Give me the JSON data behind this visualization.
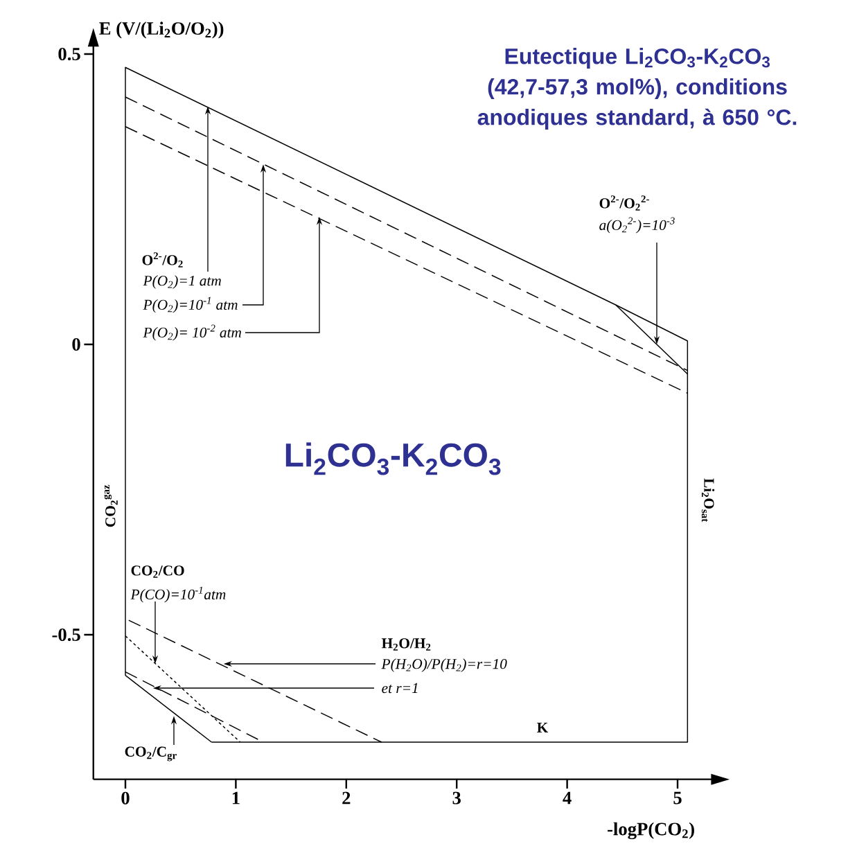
{
  "chart_data": {
    "type": "line",
    "title": "Eutectique Li$_{2}$CO$_{3}$-K$_{2}$CO$_{3}$ (42,7-57,3 mol%), conditions anodiques standard, à 650 °C.",
    "xlabel": "-logP(CO$_{2}$)",
    "ylabel": "E (V/(Li$_{2}$O/O$_{2}$))",
    "xlim": [
      -0.29,
      5.32
    ],
    "ylim": [
      -0.749,
      0.516
    ],
    "xticks": [
      0,
      1,
      2,
      3,
      4,
      5
    ],
    "yticks": [
      -0.5,
      0,
      0.5
    ],
    "series": [
      {
        "color": "#000000",
        "line_style": "solid",
        "x": [
          0,
          0,
          4.44,
          5.09,
          5.09,
          0.78
        ],
        "values": [
          -0.57,
          0.477,
          0.068,
          0.006,
          -0.685,
          -0.685
        ]
      },
      {
        "color": "#000000",
        "line_style": "solid",
        "x": [
          4.44,
          5.09
        ],
        "values": [
          0.068,
          -0.051
        ]
      },
      {
        "color": "#000000",
        "line_style": "dashed",
        "x": [
          0,
          5.09
        ],
        "values": [
          0.426,
          -0.045
        ]
      },
      {
        "color": "#000000",
        "line_style": "dashed",
        "x": [
          0,
          5.09
        ],
        "values": [
          0.375,
          -0.084
        ]
      },
      {
        "color": "#000000",
        "line_style": "dotted",
        "x": [
          0,
          1.04
        ],
        "values": [
          -0.502,
          -0.685
        ]
      },
      {
        "color": "#000000",
        "line_style": "dashed",
        "x": [
          0.03,
          2.32
        ],
        "values": [
          -0.475,
          -0.685
        ]
      },
      {
        "color": "#000000",
        "line_style": "dashed",
        "x": [
          0,
          1.25
        ],
        "values": [
          -0.564,
          -0.685
        ]
      },
      {
        "color": "#000000",
        "line_style": "solid",
        "x": [
          0,
          0.78
        ],
        "values": [
          -0.57,
          -0.685
        ]
      }
    ],
    "annotations": [
      "O$^{2-}$/O$_{2}$",
      {
        "text": "P(O$_{2}$)=1 atm",
        "x": 0.75,
        "y": 0.41
      },
      {
        "text": "P(O$_{2}$)=10$^{-1}$ atm",
        "x": 1.25,
        "y": 0.31
      },
      {
        "text": "P(O$_{2}$)= 10$^{-2}$ atm",
        "x": 1.76,
        "y": 0.22
      },
      "O$^{2-}$/O$_{2}$$^{2-}$",
      {
        "text": "a(O$_{2}$$^{2-}$)=10$^{-3}$",
        "x": 4.81,
        "y": 0.0
      },
      "Li$_{2}$CO$_{3}$-K$_{2}$CO$_{3}$",
      "CO$_{2}$$^{gaz}$",
      "Li$_{2}$O$_{sat}$",
      "CO$_{2}$/CO",
      {
        "text": "P(CO)=10$^{-1}$atm",
        "x": 0.27,
        "y": -0.55
      },
      "H$_{2}$O/H$_{2}$",
      {
        "text": "P(H$_{2}$O)/P(H$_{2}$)=r=10",
        "x": 0.89,
        "y": -0.55
      },
      {
        "text": "et r=1",
        "x": 0.25,
        "y": -0.59
      },
      "K",
      {
        "text": "CO$_{2}$/C$_{gr}$",
        "x": 0.44,
        "y": -0.64
      }
    ]
  }
}
